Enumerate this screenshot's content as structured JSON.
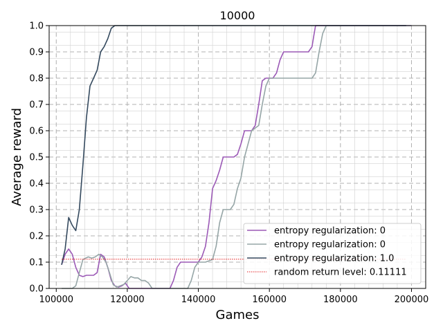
{
  "chart_data": {
    "type": "line",
    "title": "10000",
    "xlabel": "Games",
    "ylabel": "Average reward",
    "xlim": [
      100000,
      200000
    ],
    "ylim": [
      0.0,
      1.0
    ],
    "x_ticks": [
      100000,
      120000,
      140000,
      160000,
      180000,
      200000
    ],
    "x_tick_labels": [
      "100000",
      "120000",
      "140000",
      "160000",
      "180000",
      "200000"
    ],
    "y_ticks": [
      0.0,
      0.1,
      0.2,
      0.3,
      0.4,
      0.5,
      0.6,
      0.7,
      0.8,
      0.9,
      1.0
    ],
    "y_tick_labels": [
      "0.0",
      "0.1",
      "0.2",
      "0.3",
      "0.4",
      "0.5",
      "0.6",
      "0.7",
      "0.8",
      "0.9",
      "1.0"
    ],
    "grid": true,
    "legend_position": "lower-right",
    "series": [
      {
        "name": "entropy regularization:  0",
        "color": "#9b59b6",
        "style": "solid",
        "x": [
          101500,
          102500,
          103500,
          104500,
          105500,
          106500,
          107500,
          108500,
          109500,
          110500,
          111500,
          112500,
          113500,
          114500,
          115500,
          116500,
          117500,
          118500,
          119500,
          120500,
          121500,
          123000,
          126000,
          130000,
          132000,
          133000,
          134000,
          135000,
          137000,
          139000,
          140000,
          141000,
          142000,
          143000,
          144000,
          145000,
          146000,
          147000,
          148000,
          150000,
          151000,
          152000,
          153000,
          155000,
          156000,
          157000,
          158000,
          159000,
          161000,
          162000,
          163000,
          164000,
          165000,
          167000,
          171000,
          172000,
          172600,
          173000,
          175000,
          178000,
          190000,
          200000
        ],
        "y": [
          0.09,
          0.13,
          0.15,
          0.13,
          0.08,
          0.05,
          0.045,
          0.05,
          0.05,
          0.05,
          0.06,
          0.13,
          0.12,
          0.08,
          0.03,
          0.01,
          0.005,
          0.01,
          0.02,
          0.0,
          0.0,
          0.0,
          0.0,
          0.0,
          0.0,
          0.03,
          0.08,
          0.1,
          0.1,
          0.1,
          0.1,
          0.12,
          0.16,
          0.25,
          0.38,
          0.41,
          0.45,
          0.5,
          0.5,
          0.5,
          0.51,
          0.55,
          0.6,
          0.6,
          0.62,
          0.7,
          0.79,
          0.8,
          0.8,
          0.82,
          0.87,
          0.9,
          0.9,
          0.9,
          0.9,
          0.92,
          0.97,
          1.0,
          1.0,
          1.0,
          1.0,
          1.0
        ]
      },
      {
        "name": "entropy regularization:  0",
        "color": "#95a5a6",
        "style": "solid",
        "x": [
          101500,
          103000,
          104500,
          105500,
          106500,
          107500,
          109000,
          110000,
          111000,
          112000,
          113000,
          114000,
          115000,
          116000,
          117000,
          118000,
          119000,
          120000,
          121000,
          122000,
          123000,
          124000,
          125000,
          126000,
          127000,
          128000,
          130000,
          134000,
          137000,
          138000,
          139000,
          140000,
          142000,
          144000,
          145000,
          146000,
          147000,
          148000,
          149000,
          150000,
          151000,
          152000,
          153000,
          154000,
          155000,
          157000,
          158000,
          159000,
          160000,
          162000,
          165000,
          168000,
          172000,
          173000,
          174000,
          175000,
          176000,
          178000,
          190000,
          200000
        ],
        "y": [
          0.0,
          0.0,
          0.0,
          0.01,
          0.06,
          0.11,
          0.12,
          0.115,
          0.12,
          0.13,
          0.12,
          0.1,
          0.06,
          0.015,
          0.005,
          0.01,
          0.015,
          0.03,
          0.045,
          0.04,
          0.04,
          0.03,
          0.03,
          0.02,
          0.0,
          0.0,
          0.0,
          0.0,
          0.0,
          0.03,
          0.08,
          0.1,
          0.1,
          0.11,
          0.16,
          0.25,
          0.3,
          0.3,
          0.3,
          0.32,
          0.38,
          0.42,
          0.5,
          0.55,
          0.6,
          0.62,
          0.7,
          0.77,
          0.8,
          0.8,
          0.8,
          0.8,
          0.8,
          0.82,
          0.9,
          0.97,
          1.0,
          1.0,
          1.0,
          1.0
        ]
      },
      {
        "name": "entropy regularization:  1.0",
        "color": "#34495e",
        "style": "solid",
        "x": [
          101500,
          102500,
          103500,
          104500,
          105500,
          106500,
          107500,
          108500,
          109500,
          110500,
          111500,
          112500,
          113500,
          114500,
          115500,
          116500,
          117500,
          120000,
          140000,
          160000,
          180000,
          198500
        ],
        "y": [
          0.09,
          0.15,
          0.27,
          0.24,
          0.22,
          0.3,
          0.47,
          0.65,
          0.77,
          0.8,
          0.83,
          0.9,
          0.92,
          0.95,
          0.99,
          1.0,
          1.0,
          1.0,
          1.0,
          1.0,
          1.0,
          1.0
        ]
      },
      {
        "name": "random return level: 0.11111",
        "color": "#e31a1c",
        "style": "dotted",
        "x": [
          101500,
          198500
        ],
        "y": [
          0.11111,
          0.11111
        ]
      }
    ]
  }
}
